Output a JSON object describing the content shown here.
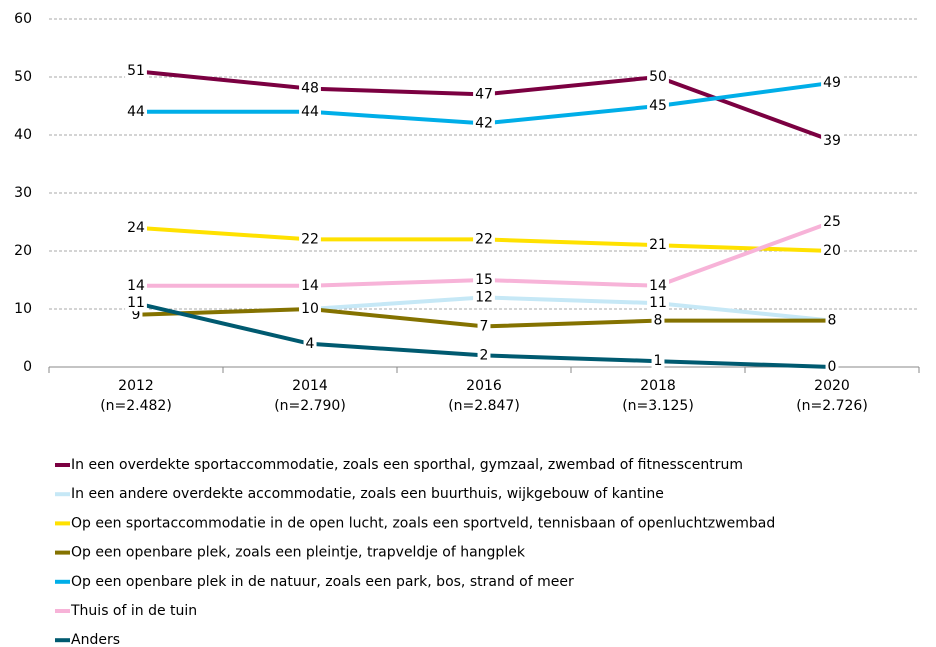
{
  "chart_data": {
    "type": "line",
    "categories": [
      "2012",
      "2014",
      "2016",
      "2018",
      "2020"
    ],
    "sample_sizes": [
      "(n=2.482)",
      "(n=2.790)",
      "(n=2.847)",
      "(n=3.125)",
      "(n=2.726)"
    ],
    "ylim": [
      0,
      60
    ],
    "yticks": [
      0,
      10,
      20,
      30,
      40,
      50,
      60
    ],
    "grid": true,
    "legend": "bottom",
    "series": [
      {
        "name": "In een overdekte sportaccommodatie, zoals een sporthal, gymzaal, zwembad of fitnesscentrum",
        "color": "#7b0041",
        "values": [
          51,
          48,
          47,
          50,
          39
        ]
      },
      {
        "name": "In een andere overdekte accommodatie, zoals een buurthuis, wijkgebouw of kantine",
        "color": "#c6e8f6",
        "values": [
          null,
          10,
          12,
          11,
          8
        ]
      },
      {
        "name": "Op een sportaccommodatie in de open lucht, zoals een sportveld, tennisbaan of openluchtzwembad",
        "color": "#ffe100",
        "values": [
          24,
          22,
          22,
          21,
          20
        ]
      },
      {
        "name": "Op een openbare plek, zoals een pleintje, trapveldje of hangplek",
        "color": "#847200",
        "values": [
          9,
          10,
          7,
          8,
          8
        ]
      },
      {
        "name": "Op een openbare plek in de natuur, zoals een park, bos, strand of meer",
        "color": "#00aee8",
        "values": [
          44,
          44,
          42,
          45,
          49
        ]
      },
      {
        "name": "Thuis of in de tuin",
        "color": "#f7b3d8",
        "values": [
          14,
          14,
          15,
          14,
          25
        ]
      },
      {
        "name": "Anders",
        "color": "#005a70",
        "values": [
          11,
          4,
          2,
          1,
          0
        ]
      }
    ]
  }
}
